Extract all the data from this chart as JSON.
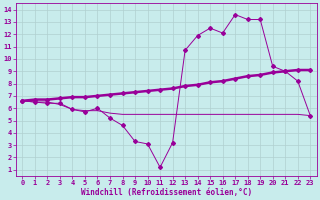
{
  "xlabel": "Windchill (Refroidissement éolien,°C)",
  "bg_color": "#c8ecec",
  "grid_color": "#b0d0d0",
  "line_color": "#990099",
  "xlim": [
    -0.5,
    23.5
  ],
  "ylim": [
    0.5,
    14.5
  ],
  "xticks": [
    0,
    1,
    2,
    3,
    4,
    5,
    6,
    7,
    8,
    9,
    10,
    11,
    12,
    13,
    14,
    15,
    16,
    17,
    18,
    19,
    20,
    21,
    22,
    23
  ],
  "yticks": [
    1,
    2,
    3,
    4,
    5,
    6,
    7,
    8,
    9,
    10,
    11,
    12,
    13,
    14
  ],
  "curve1_x": [
    0,
    1,
    2,
    3,
    4,
    5,
    6,
    7,
    8,
    9,
    10,
    11,
    12,
    13,
    14,
    15,
    16,
    17,
    18,
    19,
    20,
    21,
    22,
    23
  ],
  "curve1_y": [
    6.6,
    6.5,
    6.4,
    6.4,
    5.9,
    5.7,
    6.0,
    5.2,
    4.6,
    3.3,
    3.1,
    1.2,
    3.2,
    10.7,
    11.9,
    12.5,
    12.1,
    13.6,
    13.2,
    13.2,
    9.4,
    9.0,
    8.2,
    5.4
  ],
  "curve2_x": [
    0,
    1,
    2,
    3,
    4,
    5,
    6,
    7,
    8,
    9,
    10,
    11,
    12,
    13,
    14,
    15,
    16,
    17,
    18,
    19,
    20,
    21,
    22,
    23
  ],
  "curve2_y": [
    6.6,
    6.7,
    6.7,
    6.8,
    6.9,
    6.9,
    7.0,
    7.1,
    7.2,
    7.3,
    7.4,
    7.5,
    7.6,
    7.8,
    7.9,
    8.1,
    8.2,
    8.4,
    8.6,
    8.7,
    8.9,
    9.0,
    9.1,
    9.1
  ],
  "curve3_x": [
    0,
    1,
    2,
    3,
    4,
    5,
    6,
    7,
    8,
    9,
    10,
    11,
    12,
    13,
    14,
    15,
    16,
    17,
    18,
    19,
    20,
    21,
    22,
    23
  ],
  "curve3_y": [
    6.6,
    6.5,
    6.5,
    6.3,
    5.9,
    5.8,
    5.8,
    5.6,
    5.5,
    5.5,
    5.5,
    5.5,
    5.5,
    5.5,
    5.5,
    5.5,
    5.5,
    5.5,
    5.5,
    5.5,
    5.5,
    5.5,
    5.5,
    5.4
  ],
  "tick_fontsize": 5,
  "xlabel_fontsize": 5.5
}
